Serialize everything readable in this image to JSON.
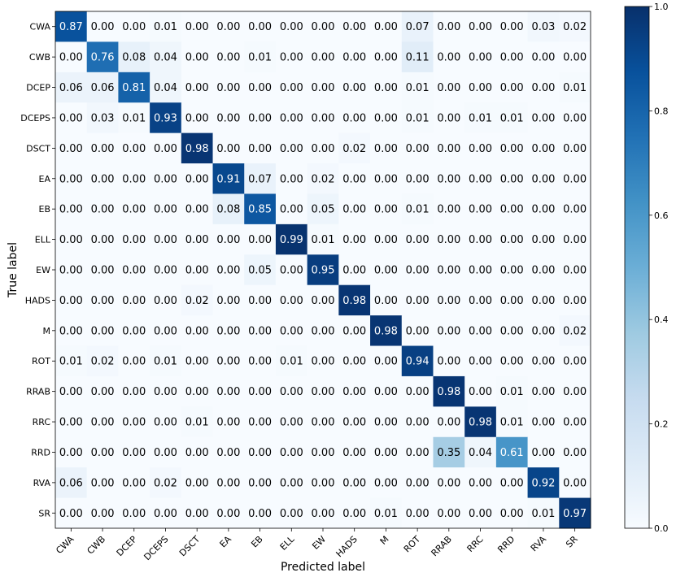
{
  "chart_data": {
    "type": "heatmap",
    "title": "",
    "xlabel": "Predicted label",
    "ylabel": "True label",
    "x_categories": [
      "CWA",
      "CWB",
      "DCEP",
      "DCEPS",
      "DSCT",
      "EA",
      "EB",
      "ELL",
      "EW",
      "HADS",
      "M",
      "ROT",
      "RRAB",
      "RRC",
      "RRD",
      "RVA",
      "SR"
    ],
    "y_categories": [
      "CWA",
      "CWB",
      "DCEP",
      "DCEPS",
      "DSCT",
      "EA",
      "EB",
      "ELL",
      "EW",
      "HADS",
      "M",
      "ROT",
      "RRAB",
      "RRC",
      "RRD",
      "RVA",
      "SR"
    ],
    "values": [
      [
        0.87,
        0.0,
        0.0,
        0.01,
        0.0,
        0.0,
        0.0,
        0.0,
        0.0,
        0.0,
        0.0,
        0.07,
        0.0,
        0.0,
        0.0,
        0.03,
        0.02
      ],
      [
        0.0,
        0.76,
        0.08,
        0.04,
        0.0,
        0.0,
        0.01,
        0.0,
        0.0,
        0.0,
        0.0,
        0.11,
        0.0,
        0.0,
        0.0,
        0.0,
        0.0
      ],
      [
        0.06,
        0.06,
        0.81,
        0.04,
        0.0,
        0.0,
        0.0,
        0.0,
        0.0,
        0.0,
        0.0,
        0.01,
        0.0,
        0.0,
        0.0,
        0.0,
        0.01
      ],
      [
        0.0,
        0.03,
        0.01,
        0.93,
        0.0,
        0.0,
        0.0,
        0.0,
        0.0,
        0.0,
        0.0,
        0.01,
        0.0,
        0.01,
        0.01,
        0.0,
        0.0
      ],
      [
        0.0,
        0.0,
        0.0,
        0.0,
        0.98,
        0.0,
        0.0,
        0.0,
        0.0,
        0.02,
        0.0,
        0.0,
        0.0,
        0.0,
        0.0,
        0.0,
        0.0
      ],
      [
        0.0,
        0.0,
        0.0,
        0.0,
        0.0,
        0.91,
        0.07,
        0.0,
        0.02,
        0.0,
        0.0,
        0.0,
        0.0,
        0.0,
        0.0,
        0.0,
        0.0
      ],
      [
        0.0,
        0.0,
        0.0,
        0.0,
        0.0,
        0.08,
        0.85,
        0.0,
        0.05,
        0.0,
        0.0,
        0.01,
        0.0,
        0.0,
        0.0,
        0.0,
        0.0
      ],
      [
        0.0,
        0.0,
        0.0,
        0.0,
        0.0,
        0.0,
        0.0,
        0.99,
        0.01,
        0.0,
        0.0,
        0.0,
        0.0,
        0.0,
        0.0,
        0.0,
        0.0
      ],
      [
        0.0,
        0.0,
        0.0,
        0.0,
        0.0,
        0.0,
        0.05,
        0.0,
        0.95,
        0.0,
        0.0,
        0.0,
        0.0,
        0.0,
        0.0,
        0.0,
        0.0
      ],
      [
        0.0,
        0.0,
        0.0,
        0.0,
        0.02,
        0.0,
        0.0,
        0.0,
        0.0,
        0.98,
        0.0,
        0.0,
        0.0,
        0.0,
        0.0,
        0.0,
        0.0
      ],
      [
        0.0,
        0.0,
        0.0,
        0.0,
        0.0,
        0.0,
        0.0,
        0.0,
        0.0,
        0.0,
        0.98,
        0.0,
        0.0,
        0.0,
        0.0,
        0.0,
        0.02
      ],
      [
        0.01,
        0.02,
        0.0,
        0.01,
        0.0,
        0.0,
        0.0,
        0.01,
        0.0,
        0.0,
        0.0,
        0.94,
        0.0,
        0.0,
        0.0,
        0.0,
        0.0
      ],
      [
        0.0,
        0.0,
        0.0,
        0.0,
        0.0,
        0.0,
        0.0,
        0.0,
        0.0,
        0.0,
        0.0,
        0.0,
        0.98,
        0.0,
        0.01,
        0.0,
        0.0
      ],
      [
        0.0,
        0.0,
        0.0,
        0.0,
        0.01,
        0.0,
        0.0,
        0.0,
        0.0,
        0.0,
        0.0,
        0.0,
        0.0,
        0.98,
        0.01,
        0.0,
        0.0
      ],
      [
        0.0,
        0.0,
        0.0,
        0.0,
        0.0,
        0.0,
        0.0,
        0.0,
        0.0,
        0.0,
        0.0,
        0.0,
        0.35,
        0.04,
        0.61,
        0.0,
        0.0
      ],
      [
        0.06,
        0.0,
        0.0,
        0.02,
        0.0,
        0.0,
        0.0,
        0.0,
        0.0,
        0.0,
        0.0,
        0.0,
        0.0,
        0.0,
        0.0,
        0.92,
        0.0
      ],
      [
        0.0,
        0.0,
        0.0,
        0.0,
        0.0,
        0.0,
        0.0,
        0.0,
        0.0,
        0.0,
        0.01,
        0.0,
        0.0,
        0.0,
        0.0,
        0.01,
        0.97
      ]
    ],
    "value_format": "2 decimals",
    "colormap": "Blues",
    "colorbar": {
      "range": [
        0.0,
        1.0
      ],
      "ticks": [
        0.0,
        0.2,
        0.4,
        0.6,
        0.8,
        1.0
      ],
      "tick_labels": [
        "0.0",
        "0.2",
        "0.4",
        "0.6",
        "0.8",
        "1.0"
      ]
    },
    "x_tick_rotation_deg": 45,
    "grid": false
  },
  "colors": {
    "low": "#f7fbff",
    "high": "#08306b",
    "text_dark": "#000000",
    "text_light": "#ffffff"
  }
}
